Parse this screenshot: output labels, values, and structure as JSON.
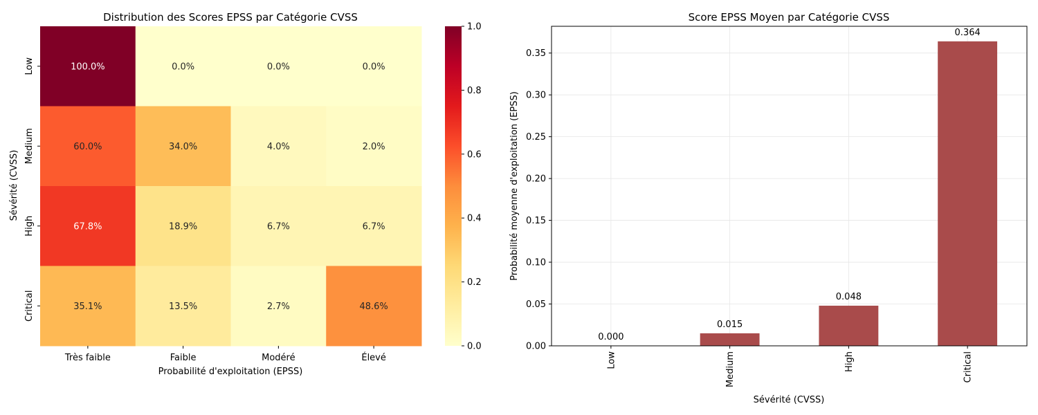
{
  "chart_data": [
    {
      "type": "heatmap",
      "title": "Distribution des Scores EPSS par Catégorie CVSS",
      "xlabel": "Probabilité d'exploitation (EPSS)",
      "ylabel": "Sévérité (CVSS)",
      "x_categories": [
        "Très faible",
        "Faible",
        "Modéré",
        "Élevé"
      ],
      "y_categories": [
        "Low",
        "Medium",
        "High",
        "Critical"
      ],
      "values": [
        [
          1.0,
          0.0,
          0.0,
          0.0
        ],
        [
          0.6,
          0.34,
          0.04,
          0.02
        ],
        [
          0.678,
          0.189,
          0.067,
          0.067
        ],
        [
          0.351,
          0.135,
          0.027,
          0.486
        ]
      ],
      "annotations": [
        [
          "100.0%",
          "0.0%",
          "0.0%",
          "0.0%"
        ],
        [
          "60.0%",
          "34.0%",
          "4.0%",
          "2.0%"
        ],
        [
          "67.8%",
          "18.9%",
          "6.7%",
          "6.7%"
        ],
        [
          "35.1%",
          "13.5%",
          "2.7%",
          "48.6%"
        ]
      ],
      "colorbar": {
        "range": [
          0.0,
          1.0
        ],
        "ticks": [
          0.0,
          0.2,
          0.4,
          0.6,
          0.8,
          1.0
        ],
        "tick_labels": [
          "0.0",
          "0.2",
          "0.4",
          "0.6",
          "0.8",
          "1.0"
        ],
        "colormap": "YlOrRd"
      }
    },
    {
      "type": "bar",
      "title": "Score EPSS Moyen par Catégorie CVSS",
      "xlabel": "Sévérité (CVSS)",
      "ylabel": "Probabilité moyenne d'exploitation (EPSS)",
      "categories": [
        "Low",
        "Medium",
        "High",
        "Critical"
      ],
      "values": [
        0.0,
        0.015,
        0.048,
        0.364
      ],
      "value_labels": [
        "0.000",
        "0.015",
        "0.048",
        "0.364"
      ],
      "ylim": [
        0.0,
        0.382
      ],
      "yticks": [
        0.0,
        0.05,
        0.1,
        0.15,
        0.2,
        0.25,
        0.3,
        0.35
      ],
      "ytick_labels": [
        "0.00",
        "0.05",
        "0.10",
        "0.15",
        "0.20",
        "0.25",
        "0.30",
        "0.35"
      ],
      "grid": true,
      "bar_color": "#a94b4b"
    }
  ]
}
